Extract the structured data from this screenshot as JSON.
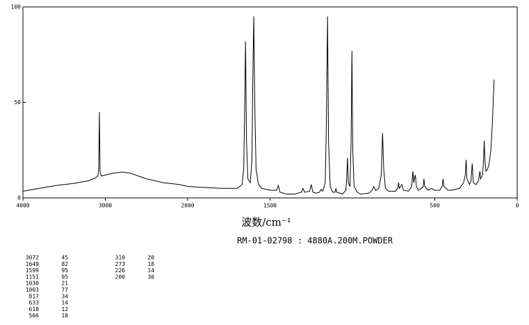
{
  "chart_data": {
    "type": "line",
    "x_label": "波数/cm⁻¹",
    "subtitle": "RM-01-02798 : 4880A.200M.POWDER",
    "xlim": [
      4000,
      0
    ],
    "x_break": 2000,
    "xticks": [
      4000,
      3000,
      2000,
      1500,
      500,
      0
    ],
    "ylim": [
      0,
      100
    ],
    "yticks": [
      0,
      50,
      100
    ],
    "series": [
      {
        "color": "#000000",
        "x": [
          4000,
          3800,
          3600,
          3400,
          3200,
          3120,
          3090,
          3080,
          3072,
          3064,
          3050,
          3000,
          2900,
          2800,
          2700,
          2600,
          2500,
          2400,
          2300,
          2200,
          2100,
          2000,
          1900,
          1800,
          1700,
          1670,
          1660,
          1655,
          1649,
          1643,
          1635,
          1620,
          1610,
          1605,
          1599,
          1593,
          1585,
          1570,
          1550,
          1500,
          1460,
          1450,
          1440,
          1400,
          1350,
          1310,
          1300,
          1290,
          1260,
          1250,
          1240,
          1220,
          1200,
          1190,
          1180,
          1165,
          1158,
          1151,
          1145,
          1135,
          1120,
          1105,
          1100,
          1095,
          1060,
          1040,
          1035,
          1030,
          1025,
          1015,
          1008,
          1003,
          998,
          990,
          970,
          950,
          900,
          880,
          870,
          860,
          840,
          825,
          817,
          810,
          800,
          780,
          740,
          725,
          720,
          715,
          700,
          690,
          660,
          640,
          633,
          628,
          622,
          618,
          612,
          600,
          580,
          570,
          566,
          561,
          540,
          520,
          500,
          470,
          455,
          450,
          445,
          420,
          400,
          350,
          325,
          315,
          310,
          305,
          290,
          280,
          273,
          266,
          250,
          235,
          226,
          222,
          210,
          204,
          200,
          196,
          190,
          180,
          170,
          160,
          150,
          145,
          140
        ],
        "values": [
          3.5,
          5,
          6.5,
          7.5,
          9,
          10.5,
          11.5,
          15,
          45,
          14,
          11.5,
          12,
          13,
          13.5,
          13,
          11.5,
          10,
          9,
          8,
          7.5,
          7,
          6,
          5.5,
          5,
          5,
          7,
          15,
          40,
          82,
          30,
          10,
          8,
          20,
          60,
          95,
          50,
          15,
          7,
          5,
          4,
          4,
          6.5,
          3,
          2,
          2,
          3,
          5,
          3,
          3.5,
          7,
          3,
          2.5,
          3,
          4.5,
          3.5,
          8,
          40,
          95,
          30,
          6,
          3,
          3,
          5,
          3,
          2,
          4,
          10,
          21,
          8,
          6,
          30,
          77,
          25,
          6,
          3,
          2,
          2.5,
          4,
          6,
          4,
          5,
          12,
          34,
          15,
          5,
          3.5,
          3.5,
          5,
          8,
          5,
          7,
          4,
          3.5,
          6,
          14,
          8,
          11,
          12,
          6,
          4,
          5,
          6,
          10,
          6,
          4,
          5,
          4,
          4,
          6,
          10,
          6,
          4,
          4,
          5,
          8,
          12,
          20,
          10,
          7,
          9,
          18,
          8,
          7,
          9,
          14,
          10,
          12,
          20,
          30,
          20,
          14,
          15,
          18,
          25,
          40,
          52,
          62
        ]
      }
    ],
    "peak_table": {
      "x": [
        3072,
        1649,
        1599,
        1151,
        1030,
        1003,
        817,
        633,
        618,
        566,
        310,
        273,
        226,
        200
      ],
      "values": [
        45,
        82,
        95,
        95,
        21,
        77,
        34,
        14,
        12,
        10,
        20,
        18,
        14,
        30
      ]
    }
  }
}
